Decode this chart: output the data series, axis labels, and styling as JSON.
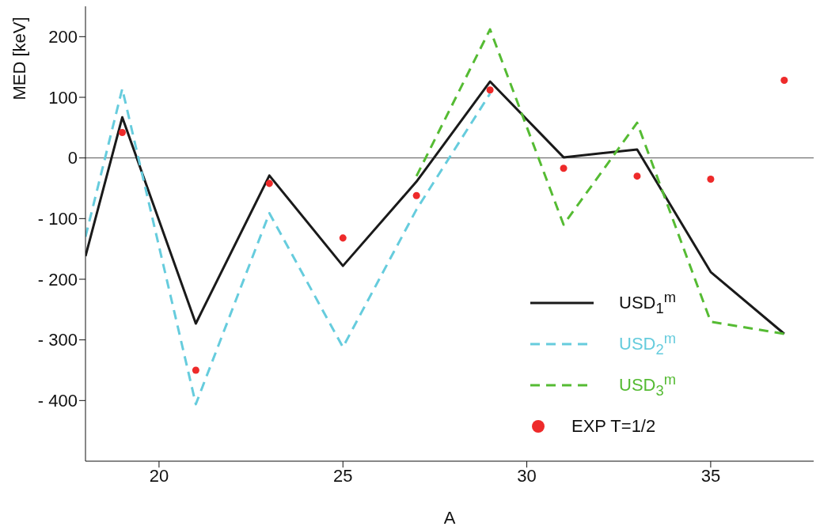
{
  "chart_data": {
    "type": "line",
    "xlabel": "A",
    "ylabel": "MED [keV]",
    "xlim": [
      18,
      37.8
    ],
    "xticks": [
      20,
      25,
      30,
      35
    ],
    "ylim": [
      -500,
      250
    ],
    "yticks": [
      200,
      100,
      0,
      {
        "value": -100,
        "label": "- 100"
      },
      {
        "value": -200,
        "label": "- 200"
      },
      {
        "value": -300,
        "label": "- 300"
      },
      {
        "value": -400,
        "label": "- 400"
      }
    ],
    "ref_lines": [
      {
        "axis": "y",
        "value": 0,
        "color": "#555555"
      }
    ],
    "legend": "bottom right",
    "series": [
      {
        "name": "USD$_{1}$$^{m}$",
        "line_style": "solid",
        "color": "#1a1a1a",
        "x": [
          18,
          19,
          21,
          23,
          25,
          27,
          29,
          31,
          33,
          35,
          37
        ],
        "values": [
          -162,
          67,
          -273,
          -29,
          -178,
          -39,
          126,
          1,
          14,
          -188,
          -290
        ]
      },
      {
        "name": "USD$_{2}$$^{m}$",
        "line_style": "dashed",
        "color": "#66ccdd",
        "x": [
          18,
          19,
          21,
          23,
          25,
          27,
          29
        ],
        "values": [
          -130,
          114,
          -406,
          -91,
          -312,
          -85,
          106
        ]
      },
      {
        "name": "USD$_{3}$$^{m}$",
        "line_style": "dashed",
        "color": "#55bb33",
        "x": [
          27,
          29,
          31,
          33,
          35,
          37
        ],
        "values": [
          -30,
          212,
          -110,
          58,
          -270,
          -290
        ]
      },
      {
        "name": "EXP T=1/2",
        "type": "scatter",
        "marker": "circle",
        "color": "#ee2a2a",
        "x": [
          19,
          21,
          23,
          25,
          27,
          29,
          31,
          33,
          35,
          37
        ],
        "values": [
          42,
          -350,
          -42,
          -132,
          -62,
          112,
          -17,
          -30,
          -35,
          128
        ]
      }
    ]
  }
}
